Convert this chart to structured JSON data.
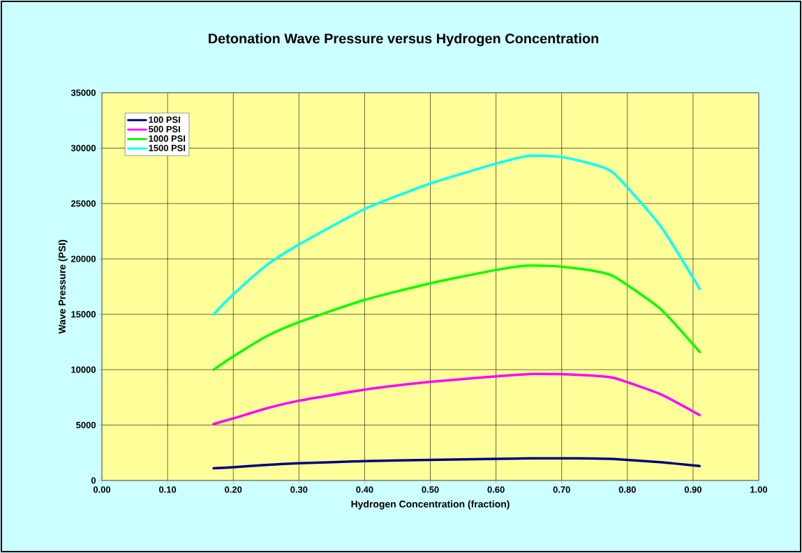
{
  "chart_data": {
    "type": "line",
    "title": "Detonation Wave Pressure versus Hydrogen Concentration",
    "xlabel": "Hydrogen Concentration (fraction)",
    "ylabel": "Wave Pressure (PSI)",
    "x": [
      0.17,
      0.2,
      0.25,
      0.3,
      0.4,
      0.5,
      0.6,
      0.65,
      0.7,
      0.75,
      0.78,
      0.85,
      0.91
    ],
    "series": [
      {
        "name": "100 PSI",
        "color": "#000080",
        "values": [
          1100,
          1200,
          1400,
          1550,
          1750,
          1850,
          1950,
          2000,
          2000,
          1980,
          1930,
          1650,
          1300
        ]
      },
      {
        "name": "500 PSI",
        "color": "#ff00ff",
        "values": [
          5100,
          5600,
          6500,
          7200,
          8200,
          8900,
          9400,
          9600,
          9600,
          9450,
          9250,
          7800,
          5900
        ]
      },
      {
        "name": "1000 PSI",
        "color": "#00ff00",
        "values": [
          10000,
          11200,
          13000,
          14300,
          16300,
          17800,
          19000,
          19400,
          19300,
          18900,
          18400,
          15500,
          11600
        ]
      },
      {
        "name": "1500 PSI",
        "color": "#00ffff",
        "values": [
          15000,
          16800,
          19400,
          21300,
          24500,
          26800,
          28600,
          29300,
          29200,
          28500,
          27700,
          23000,
          17300
        ]
      }
    ],
    "xlim": [
      0,
      1
    ],
    "ylim": [
      0,
      35000
    ],
    "xticks": [
      {
        "value": 0,
        "label": "0.00"
      },
      {
        "value": 0.1,
        "label": "0.10"
      },
      {
        "value": 0.2,
        "label": "0.20"
      },
      {
        "value": 0.3,
        "label": "0.30"
      },
      {
        "value": 0.4,
        "label": "0.40"
      },
      {
        "value": 0.5,
        "label": "0.50"
      },
      {
        "value": 0.6,
        "label": "0.60"
      },
      {
        "value": 0.7,
        "label": "0.70"
      },
      {
        "value": 0.8,
        "label": "0.80"
      },
      {
        "value": 0.9,
        "label": "0.90"
      },
      {
        "value": 1,
        "label": "1.00"
      }
    ],
    "yticks": [
      0,
      5000,
      10000,
      15000,
      20000,
      25000,
      30000,
      35000
    ],
    "grid": true,
    "legend": "top left",
    "marker": "none",
    "line_style": "solid"
  }
}
